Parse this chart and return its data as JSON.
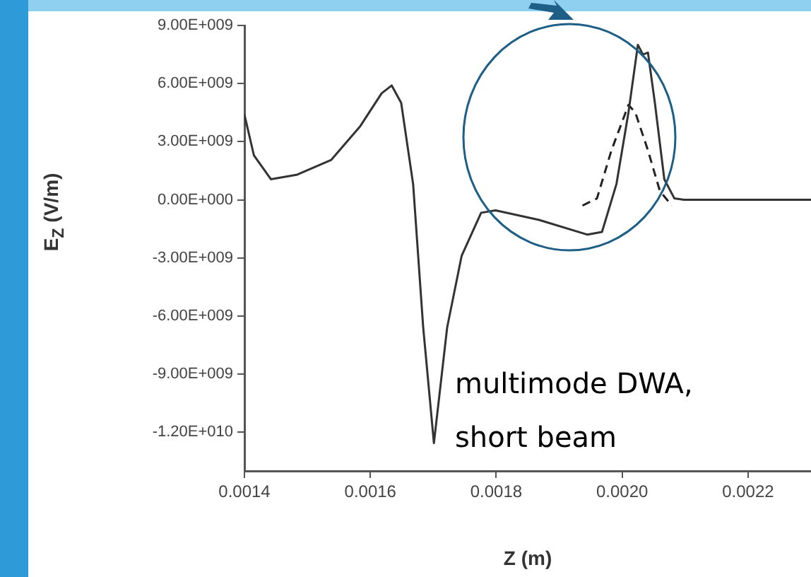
{
  "chart_data": {
    "type": "line",
    "xlabel": "Z (m)",
    "ylabel": "E$_{Z}$ (V/m)",
    "annotations": [
      "multimode DWA, short beam"
    ],
    "xlim": [
      0.0014,
      0.0023
    ],
    "ylim": [
      -14000000000,
      9000000000
    ],
    "xticks": [
      {
        "value": 0.0014,
        "label": "0.0014"
      },
      {
        "value": 0.0016,
        "label": "0.0016"
      },
      {
        "value": 0.0018,
        "label": "0.0018"
      },
      {
        "value": 0.002,
        "label": "0.0020"
      },
      {
        "value": 0.0022,
        "label": "0.0022"
      }
    ],
    "yticks": [
      {
        "value": 9000000000,
        "label": "9.00E+009"
      },
      {
        "value": 6000000000,
        "label": "6.00E+009"
      },
      {
        "value": 3000000000,
        "label": "3.00E+009"
      },
      {
        "value": 0,
        "label": "0.00E+000"
      },
      {
        "value": -3000000000,
        "label": "-3.00E+009"
      },
      {
        "value": -6000000000,
        "label": "-6.00E+009"
      },
      {
        "value": -9000000000,
        "label": "-9.00E+009"
      },
      {
        "value": -12000000000,
        "label": "-1.20E+010"
      }
    ],
    "grid": false,
    "legend": false,
    "marker": "none",
    "series": [
      {
        "color": "#333333",
        "line_style": "solid",
        "x": [
          0.0014,
          0.001415,
          0.001442,
          0.001484,
          0.001538,
          0.001584,
          0.001618,
          0.001634,
          0.001649,
          0.001668,
          0.001684,
          0.001701,
          0.001722,
          0.001745,
          0.001776,
          0.001799,
          0.001868,
          0.001945,
          0.001968,
          0.001991,
          0.00201,
          0.002025,
          0.002033,
          0.002041,
          0.002052,
          0.002067,
          0.002083,
          0.002098,
          0.0023
        ],
        "values": [
          4400000000,
          2300000000,
          1060000000,
          1300000000,
          2060000000,
          3800000000,
          5500000000,
          5900000000,
          5000000000,
          800000000,
          -6600000000,
          -12560000000,
          -6600000000,
          -2900000000,
          -670000000,
          -550000000,
          -1040000000,
          -1800000000,
          -1660000000,
          820000000,
          4500000000,
          8000000000,
          7500000000,
          7600000000,
          5000000000,
          1060000000,
          70000000,
          0,
          0
        ]
      },
      {
        "color": "#222222",
        "line_style": "dashed",
        "x": [
          0.001937,
          0.00196,
          0.001983,
          0.00201,
          0.002021,
          0.002041,
          0.00206,
          0.002079
        ],
        "values": [
          -300000000,
          70000000,
          2550000000,
          4900000000,
          4500000000,
          2550000000,
          450000000,
          -300000000
        ]
      }
    ]
  }
}
